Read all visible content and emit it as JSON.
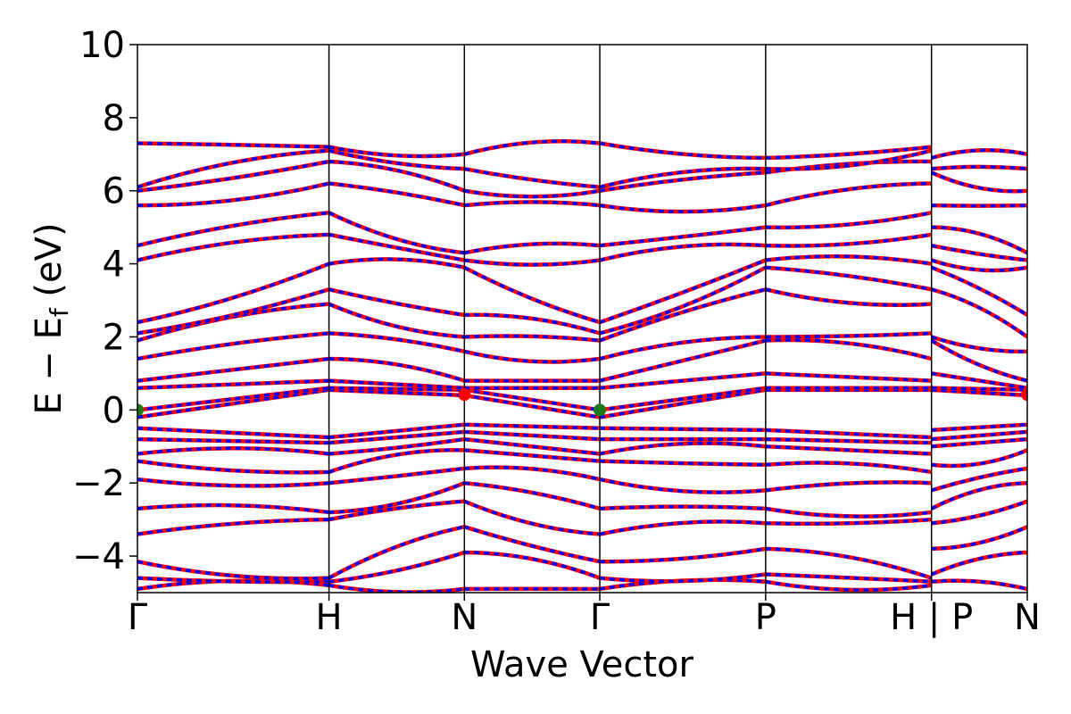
{
  "chart_data": {
    "type": "line",
    "xlabel": "Wave Vector",
    "ylabel": "E − E",
    "ylabel_sub": "f",
    "ylabel_unit": " (eV)",
    "ylim": [
      -5,
      10
    ],
    "y_ticks": [
      -4,
      -2,
      0,
      2,
      4,
      6,
      8,
      10
    ],
    "y_tick_labels": [
      "−4",
      "−2",
      "0",
      "2",
      "4",
      "6",
      "8",
      "10"
    ],
    "x_ticks": [
      {
        "label": "Γ",
        "x": 0.0
      },
      {
        "label": "H",
        "x": 1.0
      },
      {
        "label": "N",
        "x": 1.707
      },
      {
        "label": "Γ",
        "x": 2.414
      },
      {
        "label": "P",
        "x": 3.28
      },
      {
        "label": "H | P",
        "x": 4.146
      },
      {
        "label": "N",
        "x": 4.646
      }
    ],
    "segments": [
      {
        "from": "Γ",
        "to": "H",
        "x0": 0.0,
        "x1": 1.0
      },
      {
        "from": "H",
        "to": "N",
        "x0": 1.0,
        "x1": 1.707
      },
      {
        "from": "N",
        "to": "Γ",
        "x0": 1.707,
        "x1": 2.414
      },
      {
        "from": "Γ",
        "to": "P",
        "x0": 2.414,
        "x1": 3.28
      },
      {
        "from": "P",
        "to": "H",
        "x0": 3.28,
        "x1": 4.146
      },
      {
        "from": "P",
        "to": "N",
        "x0": 4.146,
        "x1": 4.646
      }
    ],
    "series": [
      {
        "style": "solid",
        "color": "#ff0000"
      },
      {
        "style": "dashed",
        "color": "#0000ff"
      }
    ],
    "bands_at_high_symmetry_points": {
      "Γ": [
        -4.9,
        -4.6,
        -4.15,
        -3.4,
        -2.7,
        -1.9,
        -1.4,
        -1.2,
        -0.8,
        -0.5,
        -0.2,
        0.0,
        0.55,
        0.6,
        0.8,
        1.4,
        1.9,
        2.1,
        2.4,
        4.1,
        4.5,
        5.6,
        6.0,
        6.1,
        7.3,
        7.4
      ],
      "H": [
        -4.8,
        -4.7,
        -4.6,
        -3.0,
        -2.8,
        -2.0,
        -1.7,
        -1.2,
        -0.9,
        -0.75,
        0.55,
        0.6,
        0.8,
        1.4,
        2.1,
        2.9,
        3.3,
        4.0,
        4.8,
        5.4,
        6.2,
        6.8,
        7.1,
        7.2
      ],
      "N": [
        -4.9,
        -3.9,
        -3.2,
        -2.5,
        -2.0,
        -1.6,
        -1.1,
        -0.8,
        -0.6,
        -0.4,
        0.4,
        0.55,
        0.6,
        0.8,
        1.6,
        2.0,
        2.6,
        3.9,
        4.1,
        4.3,
        5.6,
        6.0,
        6.6,
        7.0,
        7.5
      ],
      "Γ ": [
        -4.9,
        -4.6,
        -4.15,
        -3.4,
        -2.7,
        -1.9,
        -1.4,
        -1.2,
        -0.8,
        -0.5,
        -0.2,
        0.0,
        0.55,
        0.6,
        0.8,
        1.4,
        1.9,
        2.1,
        2.4,
        4.1,
        4.5,
        5.6,
        6.0,
        6.1,
        7.3,
        7.4
      ],
      "P": [
        -4.7,
        -4.5,
        -3.8,
        -3.1,
        -2.7,
        -2.2,
        -1.5,
        -1.0,
        -0.8,
        -0.55,
        0.55,
        0.6,
        1.0,
        1.9,
        2.0,
        3.3,
        3.9,
        4.1,
        4.5,
        5.0,
        5.6,
        6.5,
        6.6,
        6.9
      ],
      "H ": [
        -4.8,
        -4.7,
        -4.6,
        -3.0,
        -2.8,
        -2.0,
        -1.7,
        -1.2,
        -0.9,
        -0.75,
        0.55,
        0.6,
        0.8,
        1.4,
        2.1,
        2.9,
        3.3,
        4.0,
        4.8,
        5.4,
        6.2,
        6.8,
        7.1,
        7.2
      ],
      "P ": [
        -4.7,
        -4.5,
        -3.8,
        -3.1,
        -2.7,
        -2.2,
        -1.5,
        -1.0,
        -0.8,
        -0.55,
        0.55,
        0.6,
        1.0,
        1.9,
        2.0,
        3.3,
        3.9,
        4.1,
        4.5,
        5.0,
        5.6,
        6.5,
        6.6,
        6.9
      ],
      "N ": [
        -4.9,
        -3.9,
        -3.2,
        -2.5,
        -2.0,
        -1.6,
        -1.1,
        -0.8,
        -0.6,
        -0.4,
        0.4,
        0.55,
        0.6,
        0.8,
        1.6,
        2.0,
        2.6,
        3.9,
        4.1,
        4.3,
        5.6,
        6.0,
        6.6,
        7.0,
        7.5
      ]
    },
    "markers": [
      {
        "kpoint": "Γ",
        "x": 0.0,
        "y": 0.0,
        "color": "#1a7a1a",
        "label": "VBM"
      },
      {
        "kpoint": "Γ",
        "x": 2.414,
        "y": 0.0,
        "color": "#1a7a1a",
        "label": "VBM"
      },
      {
        "kpoint": "N",
        "x": 1.707,
        "y": 0.42,
        "color": "#ff0000",
        "label": "CBM"
      },
      {
        "kpoint": "N",
        "x": 4.646,
        "y": 0.42,
        "color": "#ff0000",
        "label": "CBM"
      }
    ],
    "grid": false,
    "legend": "none"
  }
}
